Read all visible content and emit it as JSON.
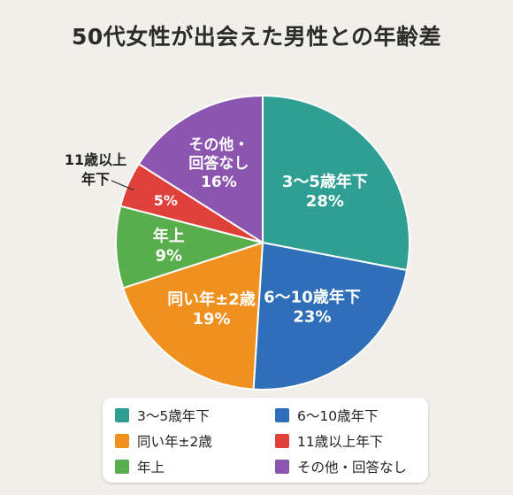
{
  "chart_data": {
    "type": "pie",
    "title": "50代女性が出会えた男性との年齢差",
    "slices": [
      {
        "label": "3〜5歳年下",
        "value": 28,
        "color": "#2f9f94"
      },
      {
        "label": "6〜10歳年下",
        "value": 23,
        "color": "#2f6fba"
      },
      {
        "label": "同い年±2歳",
        "value": 19,
        "color": "#f0901e"
      },
      {
        "label": "年上",
        "value": 9,
        "color": "#58ad4c"
      },
      {
        "label": "11歳以上年下",
        "value": 5,
        "color": "#e0403a"
      },
      {
        "label": "その他・回答なし",
        "value": 16,
        "color": "#8c56b0"
      }
    ],
    "slice_texts": [
      {
        "lines": [
          "3〜5歳年下",
          "28%"
        ]
      },
      {
        "lines": [
          "6〜10歳年下",
          "23%"
        ]
      },
      {
        "lines": [
          "同い年±2歳",
          "19%"
        ]
      },
      {
        "lines": [
          "年上",
          "9%"
        ]
      },
      {
        "lines": [
          "5%"
        ]
      },
      {
        "lines": [
          "その他・",
          "回答なし",
          "16%"
        ]
      }
    ],
    "callout": {
      "lines": [
        "11歳以上",
        "年下"
      ]
    },
    "legend": [
      {
        "label": "3〜5歳年下",
        "color": "#2f9f94"
      },
      {
        "label": "6〜10歳年下",
        "color": "#2f6fba"
      },
      {
        "label": "同い年±2歳",
        "color": "#f0901e"
      },
      {
        "label": "11歳以上年下",
        "color": "#e0403a"
      },
      {
        "label": "年上",
        "color": "#58ad4c"
      },
      {
        "label": "その他・回答なし",
        "color": "#8c56b0"
      }
    ]
  }
}
